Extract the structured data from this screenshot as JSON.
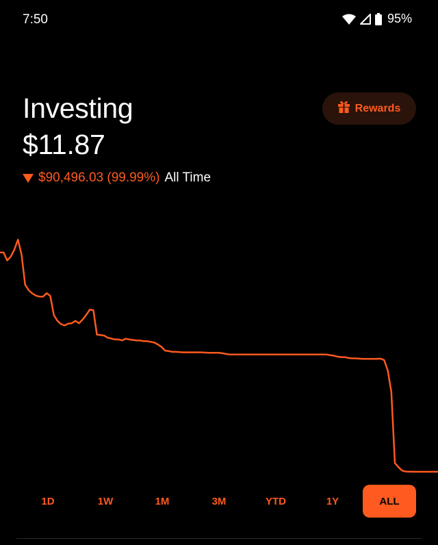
{
  "status_bar": {
    "time": "7:50",
    "battery": "95%",
    "icons": [
      "wifi-icon",
      "signal-icon",
      "battery-icon"
    ]
  },
  "header": {
    "title": "Investing",
    "value": "$11.87",
    "change_value": "$90,496.03 (99.99%)",
    "change_period": "All Time",
    "direction": "down"
  },
  "rewards": {
    "label": "Rewards",
    "icon": "gift-icon"
  },
  "colors": {
    "accent": "#ff5a1f",
    "background": "#000000",
    "rewards_bg": "#2a130a"
  },
  "ranges": [
    {
      "label": "1D",
      "active": false
    },
    {
      "label": "1W",
      "active": false
    },
    {
      "label": "1M",
      "active": false
    },
    {
      "label": "3M",
      "active": false
    },
    {
      "label": "YTD",
      "active": false
    },
    {
      "label": "1Y",
      "active": false
    },
    {
      "label": "ALL",
      "active": true
    }
  ],
  "chart_data": {
    "type": "line",
    "series": [
      {
        "values": [
          90508,
          90508,
          87200,
          88800,
          91700,
          95800,
          89600,
          77200,
          74900,
          73600,
          72700,
          72300,
          72300,
          73700,
          72600,
          64700,
          62300,
          60900,
          60400,
          61100,
          61300,
          62300,
          61300,
          62800,
          64700,
          66900,
          66700,
          56600,
          56400,
          56200,
          55300,
          55000,
          54600,
          54600,
          54200,
          54900,
          54600,
          54400,
          54200,
          54200,
          53900,
          53900,
          53600,
          53300,
          52500,
          51500,
          50000,
          49800,
          49500,
          49500,
          49400,
          49300,
          49300,
          49300,
          49300,
          49300,
          49300,
          49200,
          49100,
          49100,
          49100,
          49100,
          48900,
          48600,
          48400,
          48400,
          48400,
          48400,
          48400,
          48400,
          48400,
          48400,
          48400,
          48400,
          48400,
          48400,
          48400,
          48400,
          48400,
          48400,
          48400,
          48400,
          48400,
          48400,
          48400,
          48400,
          48400,
          48400,
          48400,
          48400,
          48400,
          48400,
          48100,
          47900,
          47500,
          47300,
          47300,
          47000,
          46800,
          46800,
          46700,
          46600,
          46600,
          46600,
          46600,
          46600,
          46700,
          46100,
          41800,
          33000,
          3600,
          1900,
          500,
          100,
          30,
          20,
          15,
          12,
          12,
          12,
          12,
          12,
          11.87
        ]
      }
    ]
  }
}
